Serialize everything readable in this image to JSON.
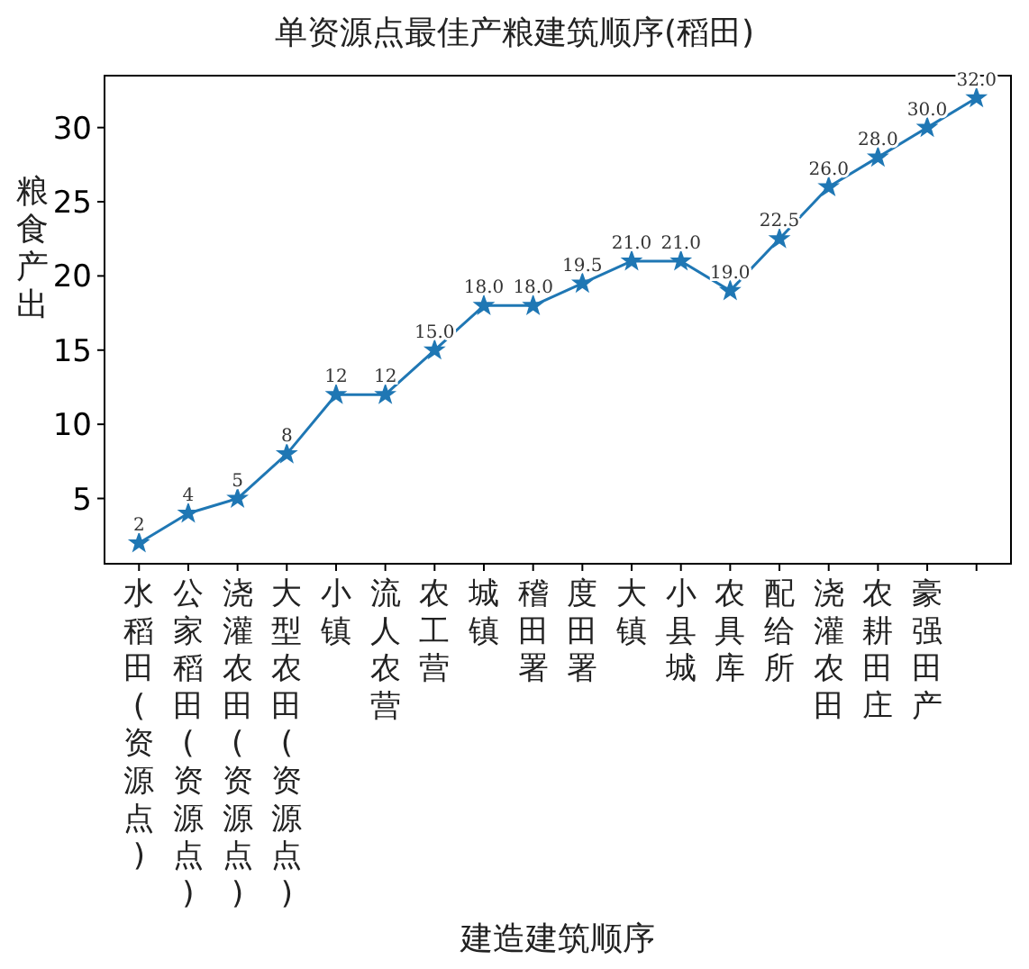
{
  "chart_data": {
    "type": "line",
    "title": "单资源点最佳产粮建筑顺序(稻田)",
    "xlabel": "建造建筑顺序",
    "ylabel": "粮食产出",
    "categories": [
      "水稻田(资源点)",
      "公家稻田(资源点)",
      "浇灌农田(资源点)",
      "大型农田(资源点)",
      "小镇",
      "流人农营",
      "农工营",
      "城镇",
      "稽田署",
      "度田署",
      "大镇",
      "小县城",
      "农具库",
      "配给所",
      "浇灌农田",
      "农耕田庄",
      "豪强田产",
      null
    ],
    "series": [
      {
        "color": "#1f77b4",
        "values": [
          2,
          4,
          5,
          8,
          12,
          12,
          15,
          18,
          18,
          19.5,
          21,
          21,
          19,
          22.5,
          26,
          28,
          30,
          32
        ],
        "value_labels": [
          "2",
          "4",
          "5",
          "8",
          "12",
          "12",
          "15.0",
          "18.0",
          "18.0",
          "19.5",
          "21.0",
          "21.0",
          "19.0",
          "22.5",
          "26.0",
          "28.0",
          "30.0",
          "32.0"
        ]
      }
    ],
    "ylim": [
      0.6,
      33.5
    ],
    "yticks": [
      5,
      10,
      15,
      20,
      25,
      30
    ],
    "marker": "star",
    "line_style": "solid",
    "grid": false
  }
}
